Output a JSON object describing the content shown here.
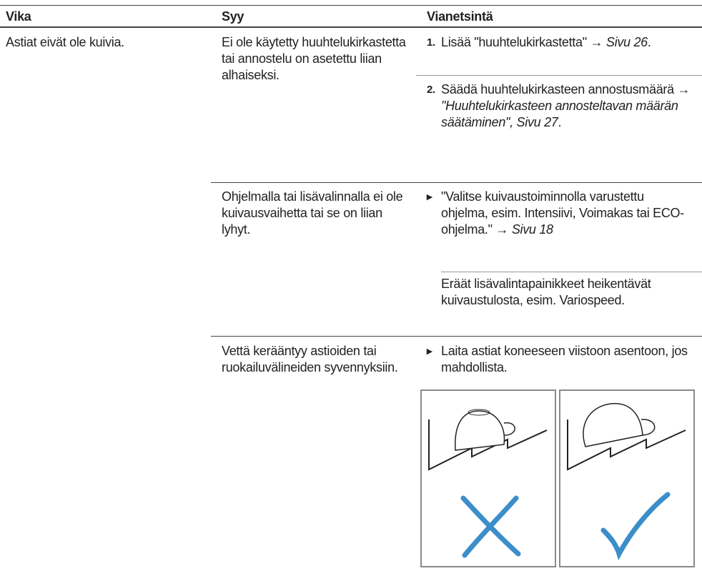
{
  "table": {
    "headers": [
      "Vika",
      "Syy",
      "Vianetsintä"
    ],
    "rows": [
      {
        "problem": "Astiat eivät ole kuivia.",
        "causes": [
          {
            "cause": "Ei ole käytetty huuhtelukirkastetta tai annostelu on asetettu liian alhaiseksi.",
            "remedies": [
              {
                "marker": "1.",
                "parts": [
                  {
                    "text": "Lisää \"huuhtelukirkastetta\" → "
                  },
                  {
                    "text": "Sivu 26",
                    "italic": true
                  },
                  {
                    "text": "."
                  }
                ]
              },
              {
                "marker": "2.",
                "parts": [
                  {
                    "text": "Säädä huuhtelukirkasteen annostusmäärä "
                  },
                  {
                    "text": "→ "
                  },
                  {
                    "text": "\"Huuhtelukirkasteen annosteltavan määrän säätäminen\", Sivu 27",
                    "italic": true
                  },
                  {
                    "text": "."
                  }
                ]
              }
            ]
          },
          {
            "cause": "Ohjelmalla tai lisävalinnalla ei ole kuivausvaihetta tai se on liian lyhyt.",
            "remedies": [
              {
                "marker": "▸",
                "parts": [
                  {
                    "text": "\"Valitse kuivaustoiminnolla varustettu ohjelma, esim. Intensiivi, Voimakas tai ECO-ohjelma.\" → "
                  },
                  {
                    "text": "Sivu 18",
                    "italic": true
                  }
                ]
              }
            ],
            "note": "Eräät lisävalintapainikkeet heikentävät kuivaustulosta, esim. Variospeed."
          },
          {
            "cause": "Vettä kerääntyy astioiden tai ruokailuvälineiden syvennyksiin.",
            "remedies": [
              {
                "marker": "▸",
                "parts": [
                  {
                    "text": "Laita astiat koneeseen viistoon asentoon, jos mahdollista."
                  }
                ]
              }
            ]
          }
        ]
      }
    ]
  }
}
